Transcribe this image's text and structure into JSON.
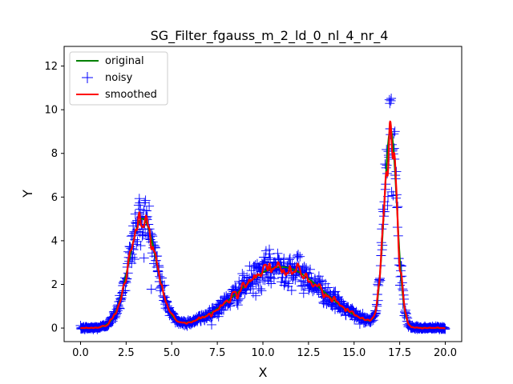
{
  "chart_data": {
    "type": "line",
    "title": "SG_Filter_fgauss_m_2_ld_0_nl_4_nr_4",
    "xlabel": "X",
    "ylabel": "Y",
    "xlim": [
      -0.9,
      20.9
    ],
    "ylim": [
      -0.62,
      12.9
    ],
    "x_ticks": [
      0.0,
      2.5,
      5.0,
      7.5,
      10.0,
      12.5,
      15.0,
      17.5,
      20.0
    ],
    "x_tick_labels": [
      "0.0",
      "2.5",
      "5.0",
      "7.5",
      "10.0",
      "12.5",
      "15.0",
      "17.5",
      "20.0"
    ],
    "y_ticks": [
      0,
      2,
      4,
      6,
      8,
      10,
      12
    ],
    "y_tick_labels": [
      "0",
      "2",
      "4",
      "6",
      "8",
      "10",
      "12"
    ],
    "grid": false,
    "legend_position": "top-left",
    "x_range": [
      0,
      20
    ],
    "n_points": 1000,
    "series": [
      {
        "name": "original",
        "style": "line",
        "color": "#008000"
      },
      {
        "name": "noisy",
        "style": "markers-plus",
        "color": "#0000ff"
      },
      {
        "name": "smoothed",
        "style": "line",
        "color": "#ff0000"
      }
    ],
    "components": [
      {
        "amplitude": 5.0,
        "center": 3.4,
        "width": 0.75
      },
      {
        "amplitude": 2.8,
        "center": 11.0,
        "width": 2.3
      },
      {
        "amplitude": 9.0,
        "center": 17.0,
        "width": 0.35
      }
    ]
  }
}
